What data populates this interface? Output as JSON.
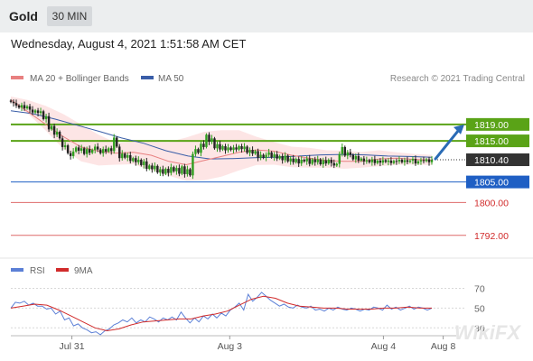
{
  "header": {
    "title": "Gold",
    "timeframe": "30 MIN"
  },
  "datetime": "Wednesday, August 4, 2021 1:51:58 AM CET",
  "legend": {
    "ma20": "MA 20 + Bollinger Bands",
    "ma50": "MA 50",
    "credit": "Research © 2021 Trading Central"
  },
  "rsi_legend": {
    "rsi": "RSI",
    "ma9": "9MA"
  },
  "watermark": "WikiFX",
  "colors": {
    "up": "#2f9e1e",
    "down": "#222222",
    "resistance": "#5aa317",
    "support": "#1f5fc4",
    "support_weak": "#d12b2b",
    "ma20": "#e88080",
    "ma50": "#3a5ea8",
    "rsi": "#5b7fd6",
    "rsi_ma": "#d12b2b",
    "band_fill": "#fde0e0",
    "arrow": "#2a6bb5",
    "current": "#333333"
  },
  "chart_data": [
    {
      "type": "candlestick",
      "ylim": [
        1788,
        1826
      ],
      "x_tick_labels": [
        "Jul 31",
        "Aug 3",
        "Aug 4",
        "Aug 8"
      ],
      "price_levels": [
        {
          "label": "1819.00",
          "value": 1819.0,
          "kind": "resistance"
        },
        {
          "label": "1815.00",
          "value": 1815.0,
          "kind": "resistance"
        },
        {
          "label": "1810.40",
          "value": 1810.4,
          "kind": "current"
        },
        {
          "label": "1805.00",
          "value": 1805.0,
          "kind": "support"
        },
        {
          "label": "1800.00",
          "value": 1800.0,
          "kind": "support_weak"
        },
        {
          "label": "1792.00",
          "value": 1792.0,
          "kind": "support_weak"
        }
      ],
      "closes": [
        1824.5,
        1824.2,
        1823.6,
        1823.1,
        1823.7,
        1822.9,
        1823.4,
        1822.6,
        1821.9,
        1822.4,
        1821.8,
        1822.2,
        1820.3,
        1821.0,
        1817.8,
        1818.6,
        1816.5,
        1817.2,
        1815.6,
        1813.5,
        1813.9,
        1812.0,
        1811.3,
        1812.4,
        1813.4,
        1812.6,
        1813.2,
        1811.8,
        1813.0,
        1812.1,
        1812.8,
        1813.6,
        1812.9,
        1812.0,
        1813.0,
        1812.4,
        1813.2,
        1812.5,
        1815.8,
        1813.6,
        1810.8,
        1811.9,
        1810.9,
        1811.5,
        1810.1,
        1810.8,
        1809.8,
        1810.4,
        1809.1,
        1810.0,
        1808.2,
        1809.0,
        1808.1,
        1808.9,
        1807.3,
        1808.1,
        1807.0,
        1808.2,
        1807.2,
        1808.6,
        1807.6,
        1808.4,
        1807.0,
        1808.8,
        1806.9,
        1808.1,
        1806.6,
        1811.8,
        1813.0,
        1812.1,
        1814.3,
        1813.5,
        1816.5,
        1814.8,
        1815.6,
        1813.2,
        1814.2,
        1812.9,
        1813.7,
        1812.7,
        1813.4,
        1812.8,
        1813.4,
        1812.9,
        1813.7,
        1813.0,
        1813.6,
        1812.1,
        1812.8,
        1811.9,
        1812.5,
        1810.9,
        1811.6,
        1810.9,
        1811.6,
        1812.2,
        1811.0,
        1811.7,
        1810.7,
        1811.3,
        1810.3,
        1811.4,
        1810.0,
        1810.7,
        1809.8,
        1810.6,
        1809.5,
        1810.4,
        1810.0,
        1810.7,
        1809.4,
        1810.5,
        1809.8,
        1810.5,
        1809.3,
        1810.3,
        1809.5,
        1810.4,
        1809.6,
        1809.0,
        1809.4,
        1811.8,
        1813.5,
        1811.4,
        1812.2,
        1811.6,
        1810.5,
        1811.3,
        1810.2,
        1810.7,
        1810.0,
        1810.3,
        1809.8,
        1810.5,
        1809.6,
        1810.2,
        1809.7,
        1810.3,
        1809.9,
        1810.2,
        1809.6,
        1810.1,
        1810.0,
        1810.4,
        1809.8,
        1810.3,
        1809.9,
        1810.2,
        1810.6,
        1809.5,
        1810.0,
        1810.3,
        1810.1,
        1810.5,
        1809.8,
        1810.4
      ],
      "ma20": [
        1825,
        1822,
        1819,
        1816,
        1813.5,
        1812.5,
        1812,
        1812.2,
        1811.5,
        1810,
        1809.2,
        1810.2,
        1811.2,
        1812.2,
        1812.8,
        1812.5,
        1811.5,
        1810.8,
        1810.2,
        1810.0,
        1810.0,
        1810.6,
        1810.8,
        1810.5,
        1810.3
      ],
      "ma50": [
        1822.3,
        1821.6,
        1820.3,
        1818.8,
        1817.3,
        1815.7,
        1814.4,
        1812.6,
        1811.3,
        1810.6,
        1810.7,
        1810.9,
        1811.0,
        1811.3,
        1811.6,
        1811.7,
        1811.6,
        1811.3,
        1811.2,
        1811.0
      ],
      "bb_upper": [
        1825.8,
        1824.9,
        1823.5,
        1821.5,
        1819,
        1816.5,
        1814.5,
        1814.8,
        1814.8,
        1814.7,
        1815.8,
        1817.2,
        1817.6,
        1817.6,
        1816.0,
        1814.7,
        1813.6,
        1813.3,
        1812.7,
        1812.6,
        1812.3,
        1812.7,
        1812.2,
        1811.8,
        1811.6
      ],
      "bb_lower": [
        1824.3,
        1821.5,
        1817.5,
        1813.0,
        1810.0,
        1809.0,
        1809.2,
        1809.3,
        1807.8,
        1806.5,
        1805.3,
        1805.4,
        1806.3,
        1807.8,
        1809.1,
        1809.2,
        1808.6,
        1808.5,
        1808.5,
        1808.2,
        1808.5,
        1808.8,
        1809.2,
        1809.2,
        1809.1
      ]
    },
    {
      "type": "line",
      "ylim": [
        22,
        76
      ],
      "y_ticks": [
        70,
        50,
        30
      ],
      "series": [
        {
          "name": "RSI",
          "values": [
            50,
            56,
            55,
            57,
            53,
            55,
            52,
            52,
            49,
            50,
            44,
            47,
            38,
            40,
            32,
            34,
            30,
            28,
            25,
            26,
            23,
            27,
            29,
            33,
            35,
            38,
            36,
            40,
            35,
            38,
            36,
            41,
            39,
            36,
            40,
            38,
            41,
            38,
            46,
            40,
            35,
            40,
            36,
            42,
            39,
            44,
            40,
            45,
            42,
            48,
            51,
            55,
            48,
            64,
            57,
            61,
            66,
            62,
            58,
            55,
            52,
            54,
            51,
            50,
            53,
            51,
            50,
            52,
            48,
            49,
            47,
            50,
            48,
            51,
            49,
            48,
            50,
            49,
            47,
            49,
            48,
            51,
            50,
            48,
            53,
            49,
            51,
            48,
            50,
            52,
            49,
            51,
            50,
            48,
            50
          ]
        },
        {
          "name": "9MA",
          "values": [
            50,
            52,
            54,
            53,
            48,
            42,
            36,
            30,
            27,
            29,
            33,
            36,
            37,
            38,
            39,
            39,
            42,
            44,
            47,
            53,
            59,
            62,
            60,
            55,
            52,
            51,
            50,
            50,
            49,
            49,
            49,
            50,
            50,
            51,
            50,
            50
          ]
        }
      ]
    }
  ]
}
